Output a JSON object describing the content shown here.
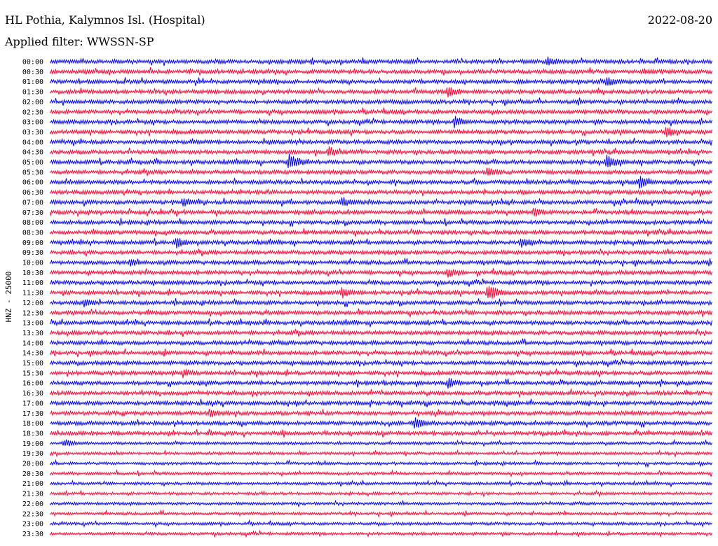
{
  "header": {
    "station": "HL Pothia, Kalymnos Isl. (Hospital)",
    "date": "2022-08-20",
    "filter": "Applied filter: WWSSN-SP"
  },
  "chart_data": {
    "type": "line",
    "title": "HL Pothia, Kalymnos Isl. (Hospital)",
    "ylabel": "HNZ - 25000",
    "xlabel": "",
    "grid": false,
    "colors": {
      "even_trace": "#0000ff",
      "odd_trace": "#ff0033"
    },
    "rows": [
      "00:00",
      "00:30",
      "01:00",
      "01:30",
      "02:00",
      "02:30",
      "03:00",
      "03:30",
      "04:00",
      "04:30",
      "05:00",
      "05:30",
      "06:00",
      "06:30",
      "07:00",
      "07:30",
      "08:00",
      "08:30",
      "09:00",
      "09:30",
      "10:00",
      "10:30",
      "11:00",
      "11:30",
      "12:00",
      "12:30",
      "13:00",
      "13:30",
      "14:00",
      "14:30",
      "15:00",
      "15:30",
      "16:00",
      "16:30",
      "17:00",
      "17:30",
      "18:00",
      "18:30",
      "19:00",
      "19:30",
      "20:00",
      "20:30",
      "21:00",
      "21:30",
      "22:00",
      "22:30",
      "23:00",
      "23:30"
    ],
    "events": [
      {
        "row": 0,
        "t": 0.75,
        "amp": 8
      },
      {
        "row": 2,
        "t": 0.84,
        "amp": 8
      },
      {
        "row": 3,
        "t": 0.6,
        "amp": 9
      },
      {
        "row": 6,
        "t": 0.61,
        "amp": 10
      },
      {
        "row": 7,
        "t": 0.93,
        "amp": 9
      },
      {
        "row": 9,
        "t": 0.42,
        "amp": 9
      },
      {
        "row": 10,
        "t": 0.36,
        "amp": 14
      },
      {
        "row": 10,
        "t": 0.84,
        "amp": 12
      },
      {
        "row": 11,
        "t": 0.66,
        "amp": 8
      },
      {
        "row": 12,
        "t": 0.89,
        "amp": 10
      },
      {
        "row": 14,
        "t": 0.2,
        "amp": 8
      },
      {
        "row": 14,
        "t": 0.44,
        "amp": 9
      },
      {
        "row": 15,
        "t": 0.73,
        "amp": 8
      },
      {
        "row": 18,
        "t": 0.19,
        "amp": 9
      },
      {
        "row": 18,
        "t": 0.71,
        "amp": 9
      },
      {
        "row": 20,
        "t": 0.12,
        "amp": 7
      },
      {
        "row": 21,
        "t": 0.6,
        "amp": 8
      },
      {
        "row": 23,
        "t": 0.44,
        "amp": 9
      },
      {
        "row": 23,
        "t": 0.66,
        "amp": 14
      },
      {
        "row": 24,
        "t": 0.05,
        "amp": 7
      },
      {
        "row": 31,
        "t": 0.2,
        "amp": 8
      },
      {
        "row": 32,
        "t": 0.6,
        "amp": 9
      },
      {
        "row": 35,
        "t": 0.24,
        "amp": 7
      },
      {
        "row": 36,
        "t": 0.55,
        "amp": 9
      },
      {
        "row": 38,
        "t": 0.02,
        "amp": 7
      }
    ]
  }
}
